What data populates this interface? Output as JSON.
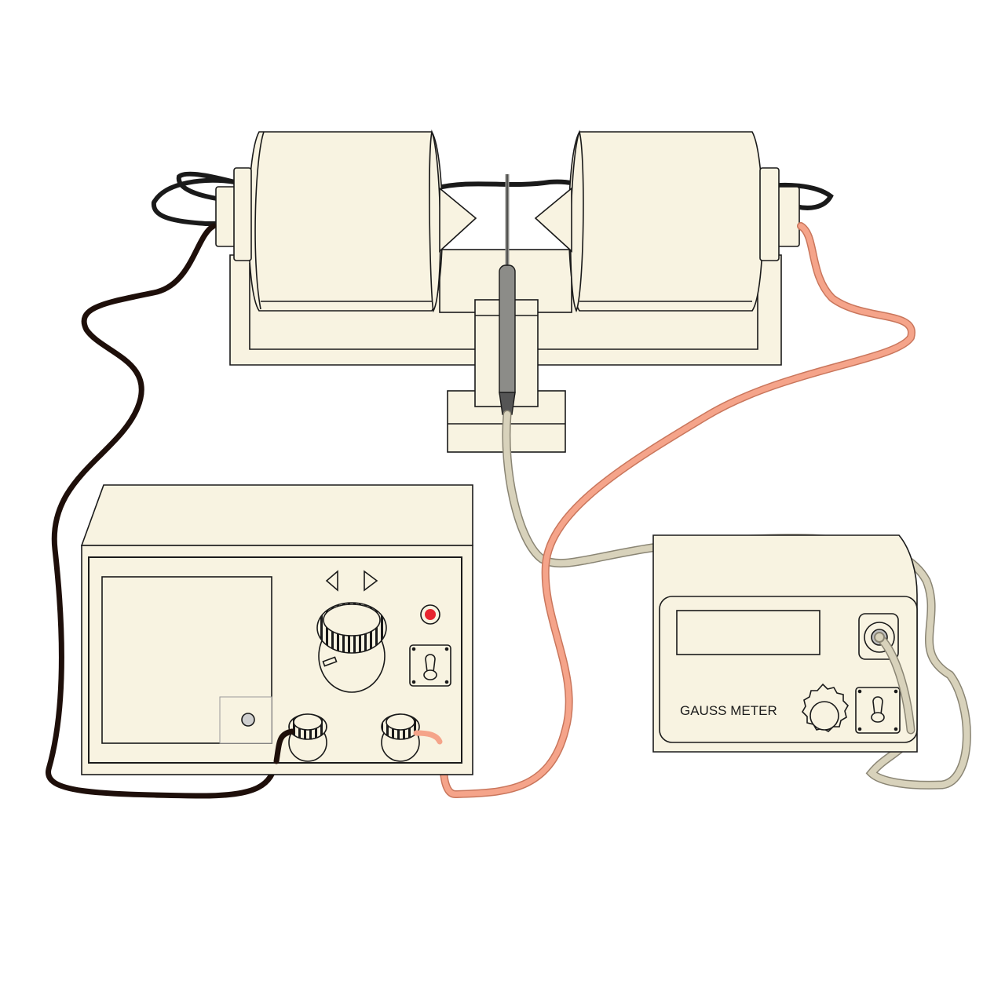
{
  "colors": {
    "equipment_fill": "#f8f3e1",
    "outline": "#1a1a1a",
    "cable_dark": "#1e0f0a",
    "cable_salmon": "#f5a48a",
    "cable_salmon_edge": "#c9765c",
    "cable_probe": "#d8d2bb",
    "cable_probe_edge": "#8a8574",
    "probe_gray": "#8c8c88",
    "indicator_red": "#e8242e"
  },
  "gauss_meter": {
    "label": "GAUSS METER"
  },
  "icons": [
    "electromagnet-coil-icon",
    "hall-probe-icon",
    "power-supply-icon",
    "gaussmeter-icon",
    "knob-icon",
    "toggle-switch-icon",
    "indicator-lamp-icon",
    "arrow-left-icon",
    "arrow-right-icon"
  ]
}
